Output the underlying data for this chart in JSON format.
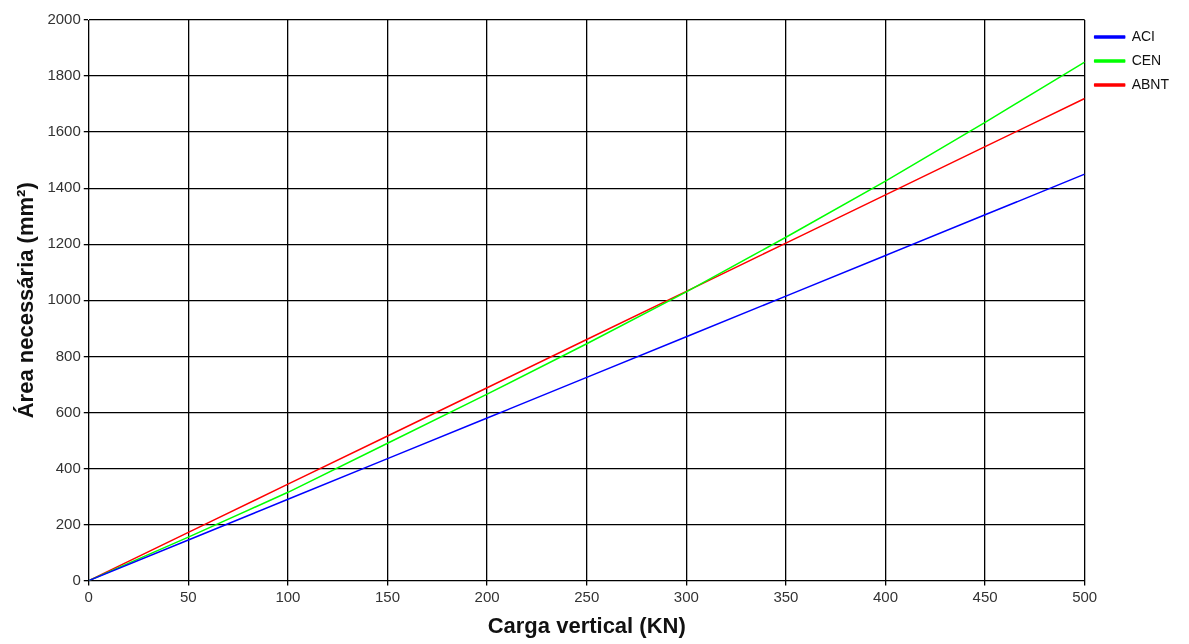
{
  "chart_data": {
    "type": "line",
    "xlabel": "Carga vertical (KN)",
    "ylabel": "Área necessária (mm²)",
    "x": [
      0,
      50,
      100,
      150,
      200,
      250,
      300,
      350,
      400,
      450,
      500
    ],
    "series": [
      {
        "name": "ACI",
        "color": "#0000ff",
        "values": [
          0,
          145,
          290,
          435,
          580,
          725,
          870,
          1015,
          1160,
          1305,
          1450
        ]
      },
      {
        "name": "CEN",
        "color": "#00ff00",
        "values": [
          0,
          155,
          315,
          490,
          665,
          845,
          1030,
          1225,
          1425,
          1635,
          1850
        ]
      },
      {
        "name": "ABNT",
        "color": "#ff0000",
        "values": [
          0,
          172,
          344,
          516,
          688,
          860,
          1032,
          1204,
          1376,
          1548,
          1720
        ]
      }
    ],
    "xlim": [
      0,
      500
    ],
    "xticks": [
      0,
      50,
      100,
      150,
      200,
      250,
      300,
      350,
      400,
      450,
      500
    ],
    "ylim": [
      0,
      2000
    ],
    "yticks": [
      0,
      200,
      400,
      600,
      800,
      1000,
      1200,
      1400,
      1600,
      1800,
      2000
    ],
    "grid": true,
    "legend": "top right",
    "marker": "none",
    "line_style": "solid"
  }
}
